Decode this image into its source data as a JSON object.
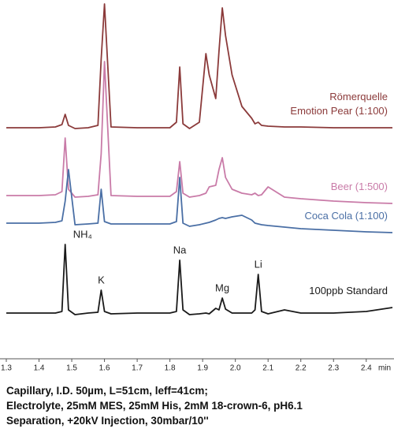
{
  "chart_data": {
    "type": "line",
    "x": [
      1.3,
      1.35,
      1.4,
      1.45,
      1.47,
      1.48,
      1.49,
      1.51,
      1.55,
      1.58,
      1.59,
      1.6,
      1.62,
      1.7,
      1.8,
      1.82,
      1.83,
      1.84,
      1.86,
      1.89,
      1.91,
      1.92,
      1.94,
      1.95,
      1.96,
      1.97,
      1.99,
      2.02,
      2.05,
      2.06,
      2.07,
      2.08,
      2.1,
      2.15,
      2.2,
      2.3,
      2.4,
      2.48
    ],
    "series": [
      {
        "name": "Römerquelle\nEmotion Pear (1:100)",
        "color": "#8b3a3a",
        "values": [
          293,
          293,
          293,
          294,
          297,
          310,
          296,
          292,
          293,
          296,
          380,
          450,
          294,
          293,
          293,
          300,
          370,
          298,
          292,
          300,
          387,
          360,
          330,
          390,
          445,
          410,
          360,
          320,
          305,
          298,
          300,
          296,
          295,
          294,
          294,
          293,
          293,
          293
        ]
      },
      {
        "name": "Beer (1:500)",
        "color": "#c97ba8",
        "values": [
          207,
          207,
          207,
          208,
          212,
          280,
          215,
          205,
          206,
          208,
          260,
          377,
          207,
          206,
          206,
          212,
          250,
          210,
          205,
          207,
          210,
          218,
          220,
          240,
          255,
          230,
          215,
          210,
          208,
          210,
          207,
          208,
          218,
          205,
          203,
          200,
          198,
          197
        ]
      },
      {
        "name": "Coca Cola (1:100)",
        "color": "#4a6fa5",
        "values": [
          172,
          172,
          172,
          173,
          175,
          200,
          240,
          170,
          171,
          172,
          215,
          174,
          171,
          171,
          171,
          174,
          230,
          172,
          168,
          170,
          172,
          173,
          176,
          178,
          179,
          178,
          180,
          182,
          176,
          172,
          171,
          170,
          169,
          167,
          165,
          163,
          161,
          160
        ]
      },
      {
        "name": "100ppb Standard",
        "color": "#1a1a1a",
        "values": [
          58,
          58,
          58,
          58,
          60,
          145,
          62,
          56,
          58,
          59,
          87,
          60,
          57,
          58,
          58,
          60,
          125,
          62,
          56,
          57,
          58,
          57,
          64,
          62,
          77,
          63,
          58,
          58,
          58,
          62,
          107,
          60,
          57,
          62,
          58,
          58,
          60,
          65
        ]
      }
    ],
    "annotations": [
      {
        "text": "NH₄",
        "x": 1.48
      },
      {
        "text": "K",
        "x": 1.59
      },
      {
        "text": "Na",
        "x": 1.83
      },
      {
        "text": "Mg",
        "x": 1.96
      },
      {
        "text": "Li",
        "x": 2.07
      }
    ],
    "xlim": [
      1.3,
      2.48
    ],
    "ylim": [
      0,
      455
    ],
    "xticks": [
      1.3,
      1.4,
      1.5,
      1.6,
      1.7,
      1.8,
      1.9,
      {
        "value": 2,
        "label": "2.0"
      },
      2.1,
      2.2,
      2.3,
      2.4
    ],
    "x_label": "min",
    "caption": [
      "Capillary, I.D. 50µm, L=51cm, leff=41cm;",
      "Electrolyte, 25mM MES, 25mM His, 2mM 18-crown-6, pH6.1",
      "Separation, +20kV  Injection, 30mbar/10''"
    ]
  }
}
